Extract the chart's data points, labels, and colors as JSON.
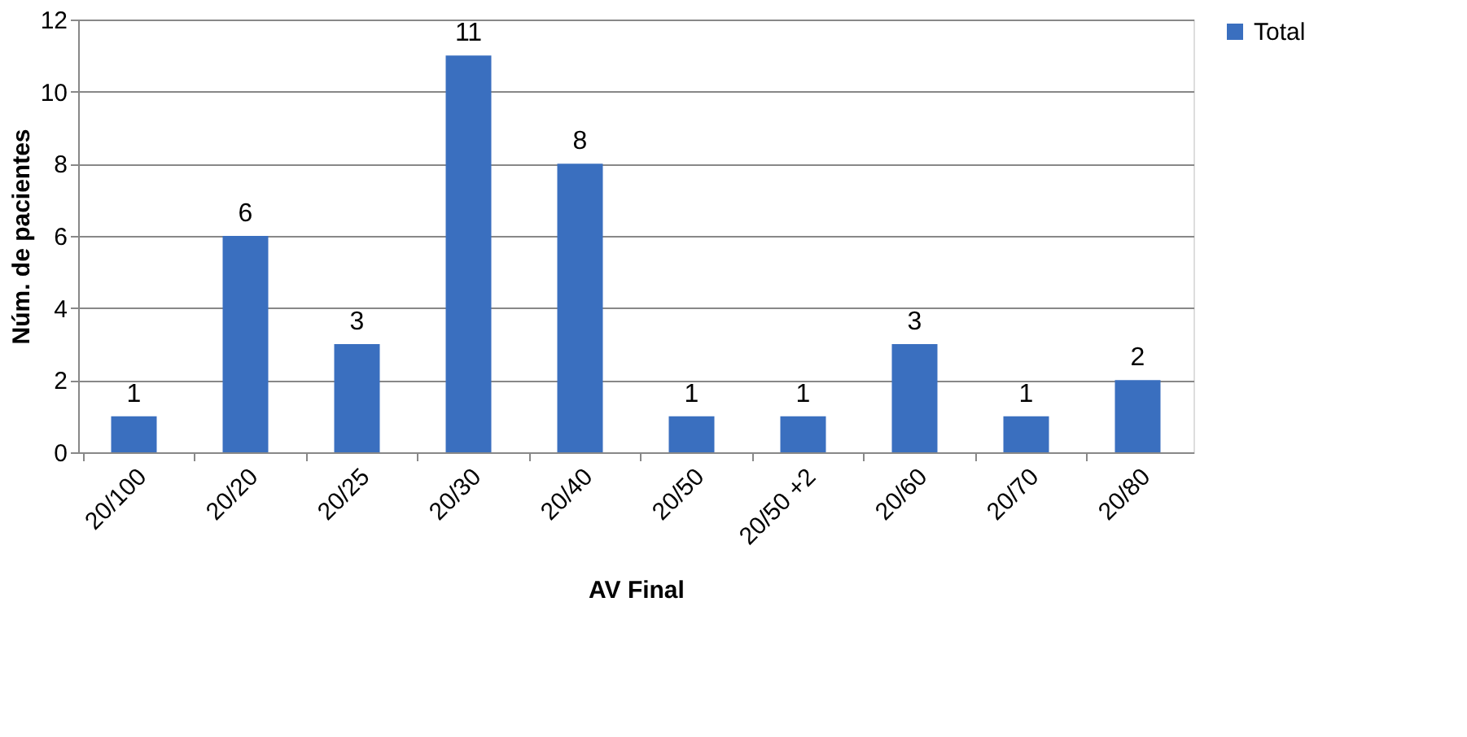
{
  "chart_data": {
    "type": "bar",
    "xlabel": "AV Final",
    "ylabel": "Núm. de pacientes",
    "categories": [
      "20/100",
      "20/20",
      "20/25",
      "20/30",
      "20/40",
      "20/50",
      "20/50 +2",
      "20/60",
      "20/70",
      "20/80"
    ],
    "series": [
      {
        "name": "Total",
        "color": "#3a6fbf",
        "values": [
          1,
          6,
          3,
          11,
          8,
          1,
          1,
          3,
          1,
          2
        ]
      }
    ],
    "ylim": [
      0,
      12
    ],
    "yticks": [
      0,
      2,
      4,
      6,
      8,
      10,
      12
    ],
    "grid": "y",
    "legend": "right",
    "data_labels": true
  }
}
